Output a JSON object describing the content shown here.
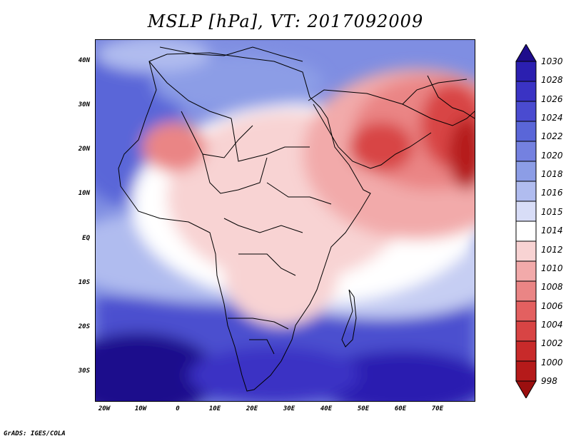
{
  "title": "MSLP [hPa], VT: 2017092009",
  "credit": "GrADS: IGES/COLA",
  "axes": {
    "lat_labels": [
      "40N",
      "30N",
      "20N",
      "10N",
      "EQ",
      "10S",
      "20S",
      "30S"
    ],
    "lon_labels": [
      "20W",
      "10W",
      "0",
      "10E",
      "20E",
      "30E",
      "40E",
      "50E",
      "60E",
      "70E"
    ]
  },
  "colorbar": {
    "levels": [
      "1030",
      "1028",
      "1026",
      "1024",
      "1022",
      "1020",
      "1018",
      "1016",
      "1015",
      "1014",
      "1012",
      "1010",
      "1008",
      "1006",
      "1004",
      "1002",
      "1000",
      "998"
    ],
    "colors": [
      "#1e0c8c",
      "#2b1fb0",
      "#3a33c4",
      "#4a4bd0",
      "#5a66d8",
      "#7481e0",
      "#8c9de6",
      "#b0bcef",
      "#d8ddf7",
      "#ffffff",
      "#f8d3d3",
      "#f2aaaa",
      "#ea8585",
      "#e36060",
      "#d84444",
      "#c82a2a",
      "#b51a1a",
      "#9b0f0f"
    ]
  },
  "map": {
    "region": "Africa and Arabian Peninsula",
    "lon_range": [
      -22,
      80
    ],
    "lat_range": [
      -37,
      45
    ]
  }
}
